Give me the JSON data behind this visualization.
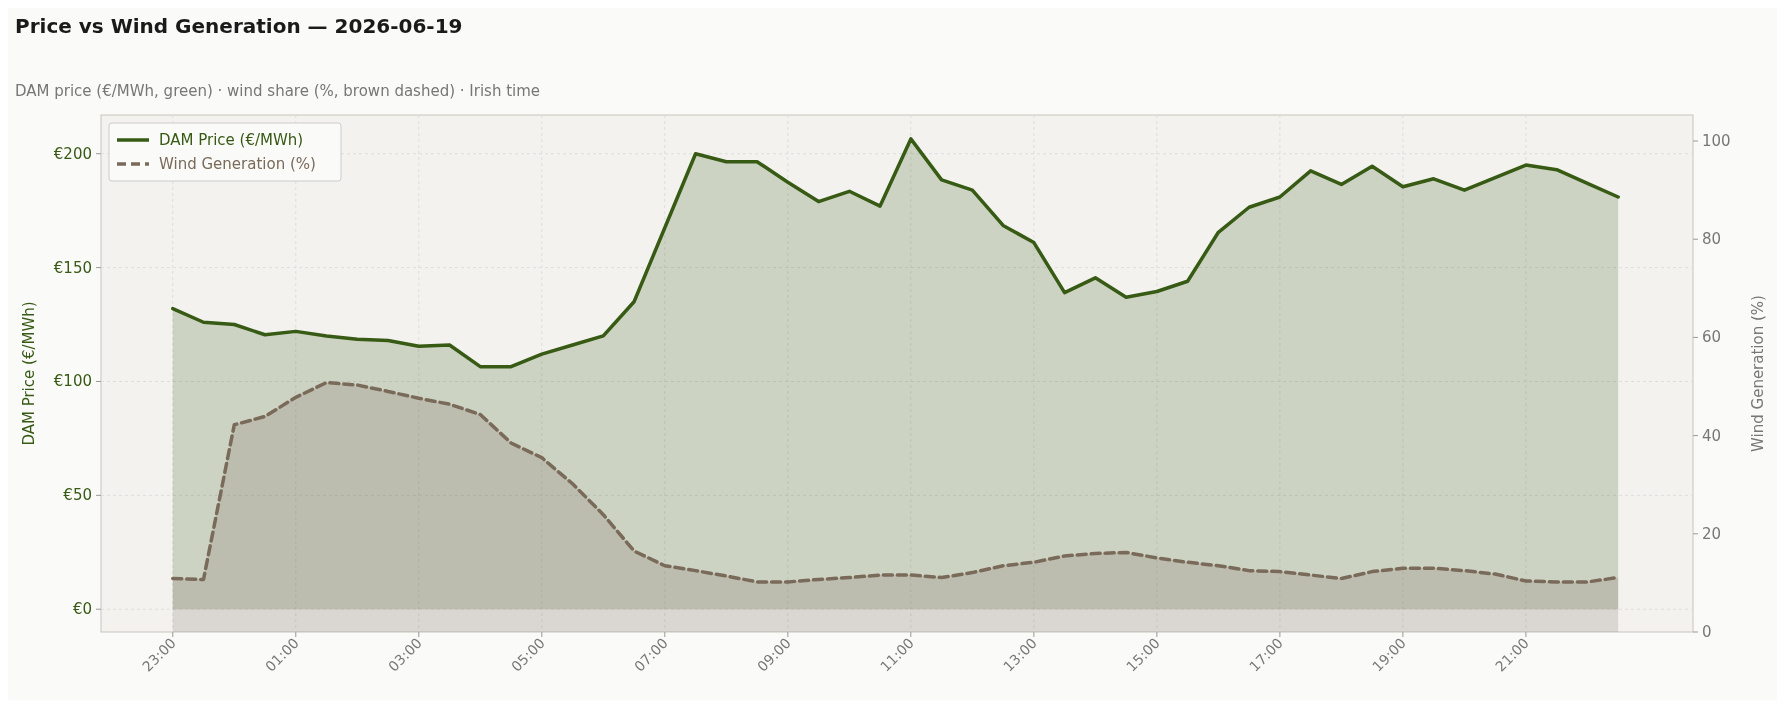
{
  "chart_data": {
    "type": "area",
    "title": "Price vs Wind Generation — 2026-06-19",
    "subtitle": "DAM price (€/MWh, green)  ·  wind share (%, brown dashed)  ·  Irish time",
    "ylabel": "DAM Price (€/MWh)",
    "y2label": "Wind Generation (%)",
    "x": [
      "2026-06-18T23:00",
      "2026-06-18T23:30",
      "2026-06-19T00:00",
      "2026-06-19T00:30",
      "2026-06-19T01:00",
      "2026-06-19T01:30",
      "2026-06-19T02:00",
      "2026-06-19T02:30",
      "2026-06-19T03:00",
      "2026-06-19T03:30",
      "2026-06-19T04:00",
      "2026-06-19T04:30",
      "2026-06-19T05:00",
      "2026-06-19T05:30",
      "2026-06-19T06:00",
      "2026-06-19T06:30",
      "2026-06-19T07:00",
      "2026-06-19T07:30",
      "2026-06-19T08:00",
      "2026-06-19T08:30",
      "2026-06-19T09:00",
      "2026-06-19T09:30",
      "2026-06-19T10:00",
      "2026-06-19T10:30",
      "2026-06-19T11:00",
      "2026-06-19T11:30",
      "2026-06-19T12:00",
      "2026-06-19T12:30",
      "2026-06-19T13:00",
      "2026-06-19T13:30",
      "2026-06-19T14:00",
      "2026-06-19T14:30",
      "2026-06-19T15:00",
      "2026-06-19T15:30",
      "2026-06-19T16:00",
      "2026-06-19T16:30",
      "2026-06-19T17:00",
      "2026-06-19T17:30",
      "2026-06-19T18:00",
      "2026-06-19T18:30",
      "2026-06-19T19:00",
      "2026-06-19T19:30",
      "2026-06-19T20:00",
      "2026-06-19T20:30",
      "2026-06-19T21:00",
      "2026-06-19T21:30",
      "2026-06-19T22:00",
      "2026-06-19T22:30"
    ],
    "xlim": [
      "2026-06-18T21:50",
      "2026-06-19T23:43"
    ],
    "xticks": [
      {
        "value": "2026-06-18T23:00",
        "label": "23:00"
      },
      {
        "value": "2026-06-19T01:00",
        "label": "01:00"
      },
      {
        "value": "2026-06-19T03:00",
        "label": "03:00"
      },
      {
        "value": "2026-06-19T05:00",
        "label": "05:00"
      },
      {
        "value": "2026-06-19T07:00",
        "label": "07:00"
      },
      {
        "value": "2026-06-19T09:00",
        "label": "09:00"
      },
      {
        "value": "2026-06-19T11:00",
        "label": "11:00"
      },
      {
        "value": "2026-06-19T13:00",
        "label": "13:00"
      },
      {
        "value": "2026-06-19T15:00",
        "label": "15:00"
      },
      {
        "value": "2026-06-19T17:00",
        "label": "17:00"
      },
      {
        "value": "2026-06-19T19:00",
        "label": "19:00"
      },
      {
        "value": "2026-06-19T21:00",
        "label": "21:00"
      }
    ],
    "ylim": [
      -10,
      217
    ],
    "yticks": [
      {
        "value": 0,
        "label": "€0"
      },
      {
        "value": 50,
        "label": "€50"
      },
      {
        "value": 100,
        "label": "€100"
      },
      {
        "value": 150,
        "label": "€150"
      },
      {
        "value": 200,
        "label": "€200"
      }
    ],
    "y2lim": [
      0,
      105.3
    ],
    "y2ticks": [
      0,
      20,
      40,
      60,
      80,
      100
    ],
    "grid": true,
    "legend": "top left",
    "series": [
      {
        "name": "DAM Price (€/MWh)",
        "color": "#375a14",
        "line_style": "solid",
        "values": [
          132,
          126,
          125,
          120.5,
          122,
          120,
          118.5,
          118,
          115.5,
          116,
          106.5,
          106.5,
          112,
          116,
          120,
          135,
          167.5,
          200,
          196.5,
          196.5,
          187.5,
          179,
          183.5,
          177,
          206.5,
          188.5,
          184,
          168.5,
          161,
          139,
          145.5,
          137,
          139.5,
          144,
          165.5,
          176.5,
          181,
          192.5,
          186.5,
          194.5,
          185.5,
          189,
          184,
          189.5,
          195,
          193,
          187,
          181
        ]
      },
      {
        "name": "Wind Generation (%)",
        "color": "#7a6a5a",
        "line_style": "dashed",
        "axis": "y2",
        "values": [
          10.9,
          10.7,
          42.2,
          43.9,
          47.8,
          50.8,
          50.3,
          49,
          47.6,
          46.4,
          44.3,
          38.5,
          35.5,
          30.2,
          23.9,
          16.5,
          13.5,
          12.5,
          11.4,
          10.2,
          10.2,
          10.7,
          11.1,
          11.6,
          11.6,
          11.1,
          12.1,
          13.5,
          14.2,
          15.5,
          16,
          16.2,
          15.1,
          14.2,
          13.5,
          12.5,
          12.3,
          11.6,
          10.9,
          12.3,
          13,
          13,
          12.5,
          11.8,
          10.4,
          10.2,
          10.2,
          11.1
        ]
      }
    ]
  }
}
